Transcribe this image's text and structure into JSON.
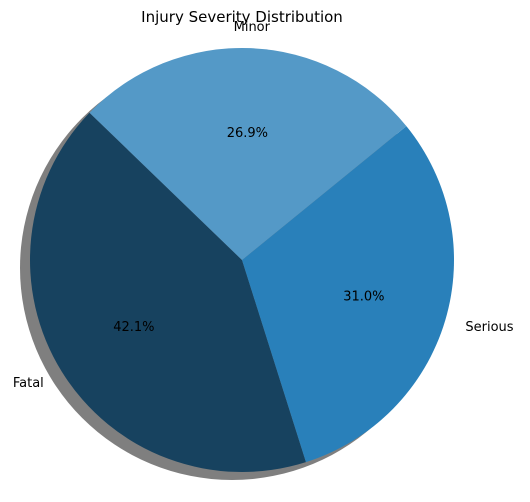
{
  "chart_data": {
    "type": "pie",
    "title": "Injury Severity Distribution",
    "categories": [
      "Fatal",
      "Serious",
      "Minor"
    ],
    "values": [
      42.1,
      31.0,
      26.9
    ],
    "value_labels": [
      "42.1%",
      "31.0%",
      "26.9%"
    ],
    "colors": [
      "#17425f",
      "#2980ba",
      "#5499c7"
    ],
    "shadow": true,
    "legend": "none"
  }
}
